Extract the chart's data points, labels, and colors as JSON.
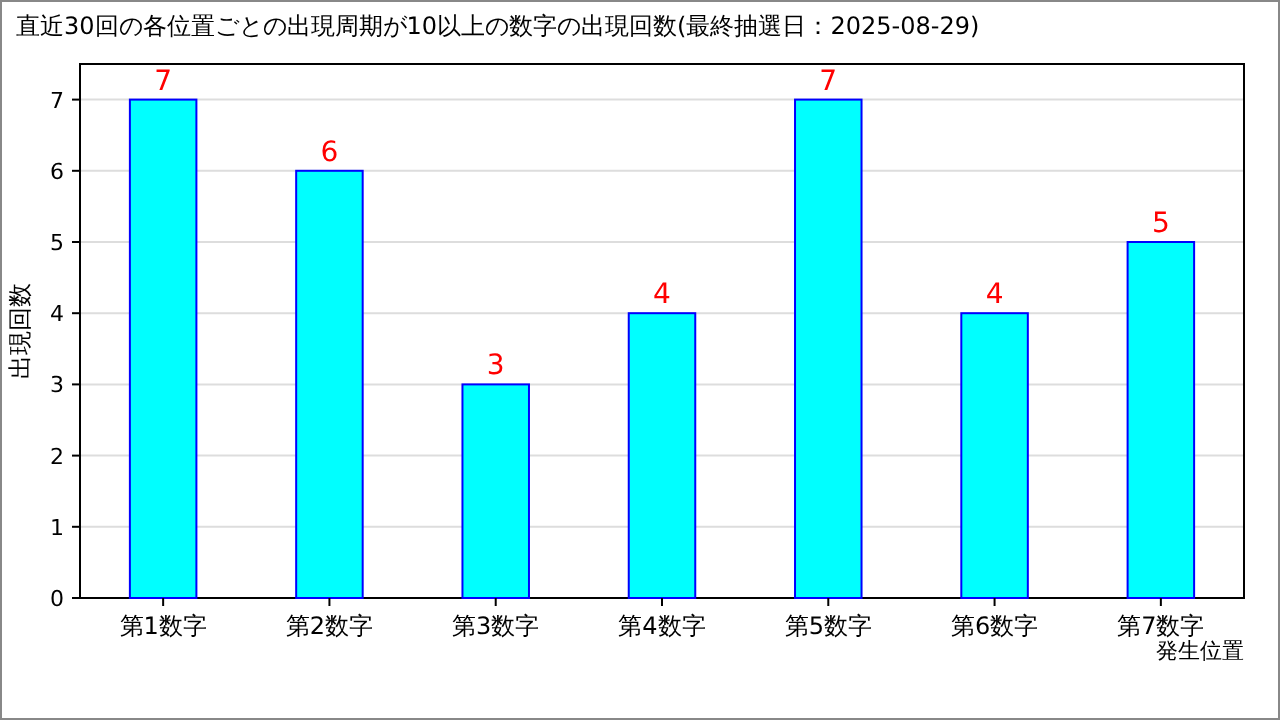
{
  "chart_data": {
    "type": "bar",
    "title": "直近30回の各位置ごとの出現周期が10以上の数字の出現回数(最終抽選日：2025-08-29)",
    "categories": [
      "第1数字",
      "第2数字",
      "第3数字",
      "第4数字",
      "第5数字",
      "第6数字",
      "第7数字"
    ],
    "series": [
      {
        "color": "#00ffff",
        "values": [
          7,
          6,
          3,
          4,
          7,
          4,
          5
        ]
      }
    ],
    "xlabel": "発生位置",
    "ylabel": "出現回数",
    "ylim": [
      0,
      7.5
    ],
    "yticks": [
      0,
      1,
      2,
      3,
      4,
      5,
      6,
      7
    ],
    "grid": "y",
    "data_labels": true
  }
}
